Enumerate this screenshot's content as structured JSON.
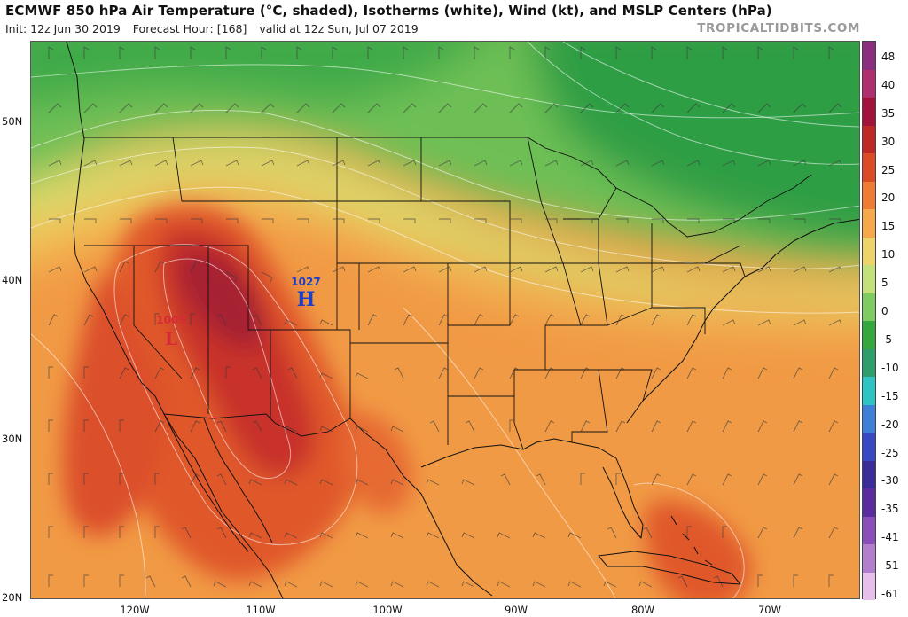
{
  "header": {
    "title": "ECMWF 850 hPa Air Temperature (°C, shaded), Isotherms (white), Wind (kt), and MSLP Centers (hPa)",
    "init": "Init: 12z Jun 30 2019",
    "forecast_hour": "Forecast Hour: [168]",
    "valid": "valid at 12z Sun, Jul 07 2019",
    "credit": "TROPICALTIDBITS.COM"
  },
  "map": {
    "lat_labels": [
      "50N",
      "40N",
      "30N",
      "20N"
    ],
    "lon_labels": [
      "120W",
      "110W",
      "100W",
      "90W",
      "80W",
      "70W"
    ],
    "pressure_centers": [
      {
        "type": "H",
        "value": "1027",
        "color": "#1b3fc8"
      },
      {
        "type": "L",
        "value": "1009",
        "color": "#d42b36"
      }
    ]
  },
  "colorbar": {
    "labels": [
      "48",
      "40",
      "35",
      "30",
      "25",
      "20",
      "15",
      "10",
      "5",
      "0",
      "-5",
      "-10",
      "-15",
      "-20",
      "-25",
      "-30",
      "-35",
      "-41",
      "-51",
      "-61"
    ],
    "colors": [
      "#8a2f7e",
      "#b0306e",
      "#a2123a",
      "#c02828",
      "#dd4a26",
      "#ee7c32",
      "#f6a94a",
      "#ecd36a",
      "#c4e07a",
      "#7ecb62",
      "#34a83e",
      "#2e9e6a",
      "#2fc4c4",
      "#3e7fd8",
      "#3949c4",
      "#3b2c9c",
      "#5a2c9e",
      "#8a4fb8",
      "#b27fcc",
      "#e6c0e8"
    ]
  }
}
